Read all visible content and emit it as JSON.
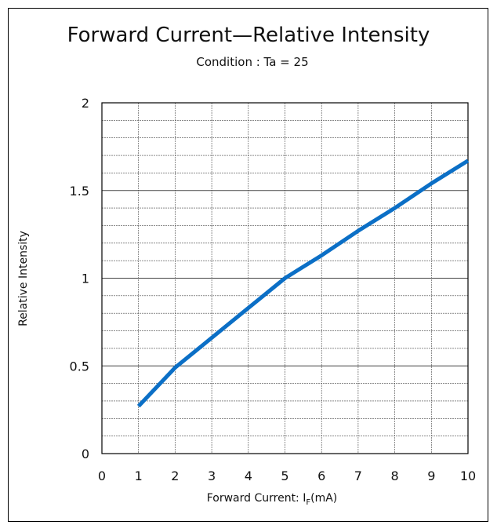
{
  "chart_data": {
    "type": "line",
    "title": "Forward Current—Relative Intensity",
    "subtitle": "Condition : Ta = 25",
    "xlabel_prefix": "Forward Current: I",
    "xlabel_sub": "F",
    "xlabel_suffix": "(mA)",
    "ylabel": "Relative Intensity",
    "xlim": [
      0,
      10
    ],
    "ylim": [
      0,
      2
    ],
    "x_ticks": [
      0,
      1,
      2,
      3,
      4,
      5,
      6,
      7,
      8,
      9,
      10
    ],
    "y_ticks": [
      0,
      0.5,
      1,
      1.5,
      2
    ],
    "x_tick_labels": [
      "0",
      "1",
      "2",
      "3",
      "4",
      "5",
      "6",
      "7",
      "8",
      "9",
      "10"
    ],
    "y_tick_labels": [
      "0",
      "0.5",
      "1",
      "1.5",
      "2"
    ],
    "grid": true,
    "series": [
      {
        "x": [
          1,
          2,
          3,
          4,
          5,
          6,
          7,
          8,
          9,
          10
        ],
        "y": [
          0.27,
          0.49,
          0.66,
          0.83,
          1.0,
          1.13,
          1.27,
          1.4,
          1.54,
          1.67
        ]
      }
    ],
    "colors": {
      "line": "#0b6fc6",
      "grid": "#444444",
      "axis": "#000000"
    }
  }
}
